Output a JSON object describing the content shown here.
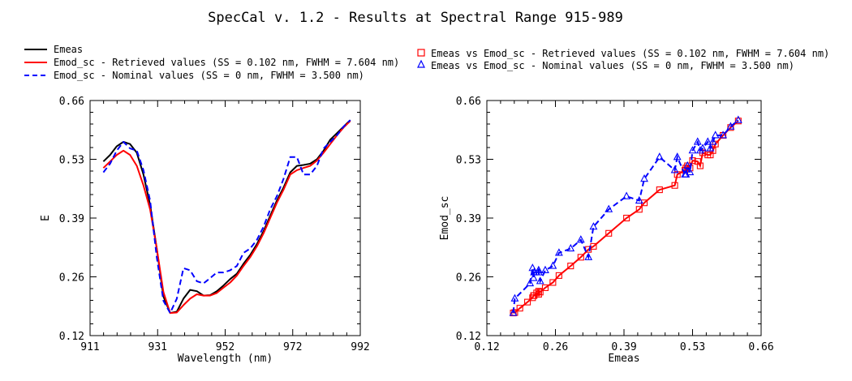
{
  "title": "SpecCal v. 1.2 - Results at Spectral Range 915-989",
  "legend_left": [
    {
      "label": "Emeas",
      "color": "#000000",
      "style": "solid"
    },
    {
      "label": "Emod_sc - Retrieved values (SS =  0.102 nm, FWHM =  7.604 nm)",
      "color": "#ff0000",
      "style": "solid"
    },
    {
      "label": "Emod_sc - Nominal values (SS = 0 nm, FWHM =  3.500 nm)",
      "color": "#0000ff",
      "style": "dashed"
    }
  ],
  "legend_right": [
    {
      "label": "Emeas vs Emod_sc - Retrieved values (SS =  0.102 nm, FWHM =  7.604 nm)",
      "color": "#ff0000",
      "marker": "square"
    },
    {
      "label": "Emeas vs Emod_sc - Nominal values (SS = 0 nm, FWHM =  3.500 nm)",
      "color": "#0000ff",
      "marker": "triangle"
    }
  ],
  "chart_data": [
    {
      "type": "line",
      "xlabel": "Wavelength (nm)",
      "ylabel": "E",
      "xlim": [
        911,
        992
      ],
      "ylim": [
        0.12,
        0.66
      ],
      "xticks": [
        "911",
        "931",
        "952",
        "972",
        "992"
      ],
      "yticks": [
        "0.12",
        "0.26",
        "0.39",
        "0.53",
        "0.66"
      ],
      "series": [
        {
          "name": "Emeas",
          "color": "#000000",
          "dash": false,
          "x": [
            915,
            917,
            919,
            921,
            923,
            925,
            927,
            929,
            931,
            933,
            935,
            937,
            939,
            941,
            943,
            945,
            947,
            949,
            951,
            953,
            955,
            957,
            959,
            961,
            963,
            965,
            967,
            969,
            971,
            973,
            975,
            977,
            979,
            981,
            983,
            985,
            987,
            989
          ],
          "y": [
            0.52,
            0.535,
            0.555,
            0.565,
            0.56,
            0.54,
            0.49,
            0.42,
            0.32,
            0.21,
            0.172,
            0.175,
            0.205,
            0.225,
            0.222,
            0.212,
            0.213,
            0.222,
            0.235,
            0.25,
            0.262,
            0.285,
            0.305,
            0.33,
            0.36,
            0.395,
            0.43,
            0.46,
            0.495,
            0.51,
            0.512,
            0.515,
            0.525,
            0.545,
            0.57,
            0.585,
            0.6,
            0.615
          ]
        },
        {
          "name": "Emod_sc - Retrieved values (SS =  0.102 nm, FWHM =  7.604 nm)",
          "color": "#ff0000",
          "dash": false,
          "x": [
            915,
            917,
            919,
            921,
            923,
            925,
            927,
            929,
            931,
            933,
            935,
            937,
            939,
            941,
            943,
            945,
            947,
            949,
            951,
            953,
            955,
            957,
            959,
            961,
            963,
            965,
            967,
            969,
            971,
            973,
            975,
            977,
            979,
            981,
            983,
            985,
            987,
            989
          ],
          "y": [
            0.505,
            0.52,
            0.535,
            0.545,
            0.535,
            0.51,
            0.465,
            0.41,
            0.32,
            0.22,
            0.172,
            0.173,
            0.19,
            0.205,
            0.215,
            0.212,
            0.212,
            0.218,
            0.23,
            0.242,
            0.258,
            0.28,
            0.3,
            0.325,
            0.355,
            0.39,
            0.425,
            0.455,
            0.49,
            0.5,
            0.505,
            0.51,
            0.522,
            0.54,
            0.56,
            0.58,
            0.598,
            0.613
          ]
        },
        {
          "name": "Emod_sc - Nominal values (SS = 0 nm, FWHM =  3.500 nm)",
          "color": "#0000ff",
          "dash": true,
          "x": [
            915,
            917,
            919,
            921,
            923,
            925,
            927,
            929,
            931,
            933,
            935,
            937,
            939,
            941,
            943,
            945,
            947,
            949,
            951,
            953,
            955,
            957,
            959,
            961,
            963,
            965,
            967,
            969,
            971,
            973,
            975,
            977,
            979,
            981,
            983,
            985,
            987,
            989
          ],
          "y": [
            0.495,
            0.515,
            0.545,
            0.565,
            0.55,
            0.545,
            0.5,
            0.43,
            0.3,
            0.2,
            0.172,
            0.205,
            0.275,
            0.27,
            0.245,
            0.24,
            0.252,
            0.265,
            0.265,
            0.27,
            0.28,
            0.31,
            0.32,
            0.34,
            0.37,
            0.41,
            0.44,
            0.48,
            0.53,
            0.53,
            0.49,
            0.49,
            0.51,
            0.55,
            0.565,
            0.58,
            0.6,
            0.615
          ]
        }
      ]
    },
    {
      "type": "scatter",
      "xlabel": "Emeas",
      "ylabel": "Emod_sc",
      "xlim": [
        0.12,
        0.66
      ],
      "ylim": [
        0.12,
        0.66
      ],
      "xticks": [
        "0.12",
        "0.26",
        "0.39",
        "0.53",
        "0.66"
      ],
      "yticks": [
        "0.12",
        "0.26",
        "0.39",
        "0.53",
        "0.66"
      ],
      "series": [
        {
          "name": "Emeas vs Emod_sc - Retrieved values (SS =  0.102 nm, FWHM =  7.604 nm)",
          "color": "#ff0000",
          "marker": "square",
          "x": [
            0.172,
            0.175,
            0.185,
            0.2,
            0.21,
            0.212,
            0.213,
            0.218,
            0.222,
            0.222,
            0.225,
            0.235,
            0.25,
            0.262,
            0.285,
            0.305,
            0.32,
            0.33,
            0.36,
            0.395,
            0.42,
            0.43,
            0.46,
            0.49,
            0.495,
            0.51,
            0.512,
            0.515,
            0.52,
            0.525,
            0.535,
            0.54,
            0.545,
            0.555,
            0.56,
            0.565,
            0.57,
            0.585,
            0.6,
            0.615
          ],
          "y": [
            0.172,
            0.173,
            0.183,
            0.197,
            0.207,
            0.212,
            0.212,
            0.218,
            0.215,
            0.222,
            0.22,
            0.23,
            0.242,
            0.258,
            0.28,
            0.3,
            0.318,
            0.325,
            0.355,
            0.39,
            0.41,
            0.425,
            0.455,
            0.465,
            0.49,
            0.5,
            0.505,
            0.51,
            0.505,
            0.522,
            0.52,
            0.51,
            0.54,
            0.535,
            0.535,
            0.545,
            0.56,
            0.58,
            0.598,
            0.613
          ]
        },
        {
          "name": "Emeas vs Emod_sc - Nominal values (SS = 0 nm, FWHM =  3.500 nm)",
          "color": "#0000ff",
          "marker": "triangle",
          "x": [
            0.172,
            0.175,
            0.205,
            0.212,
            0.213,
            0.21,
            0.222,
            0.225,
            0.222,
            0.235,
            0.25,
            0.262,
            0.285,
            0.305,
            0.32,
            0.33,
            0.36,
            0.395,
            0.42,
            0.43,
            0.46,
            0.49,
            0.495,
            0.51,
            0.512,
            0.515,
            0.52,
            0.525,
            0.535,
            0.54,
            0.545,
            0.555,
            0.56,
            0.565,
            0.57,
            0.585,
            0.6,
            0.615
          ],
          "y": [
            0.172,
            0.205,
            0.24,
            0.252,
            0.265,
            0.275,
            0.27,
            0.245,
            0.265,
            0.27,
            0.28,
            0.31,
            0.32,
            0.34,
            0.3,
            0.37,
            0.41,
            0.44,
            0.43,
            0.48,
            0.53,
            0.5,
            0.53,
            0.49,
            0.49,
            0.51,
            0.495,
            0.545,
            0.565,
            0.545,
            0.55,
            0.565,
            0.55,
            0.565,
            0.58,
            0.58,
            0.6,
            0.615
          ]
        }
      ]
    }
  ]
}
